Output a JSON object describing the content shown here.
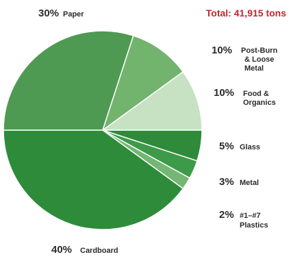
{
  "chart_data": {
    "type": "pie",
    "total_label": "Total: 41,915 tons",
    "slices": [
      {
        "percent_label": "30%",
        "name": "Paper",
        "value": 30,
        "color": "#4f9a52"
      },
      {
        "percent_label": "10%",
        "name": "Post-Burn & Loose Metal",
        "value": 10,
        "color": "#72b36e"
      },
      {
        "percent_label": "10%",
        "name": "Food & Organics",
        "value": 10,
        "color": "#c6e2c2"
      },
      {
        "percent_label": "5%",
        "name": "Glass",
        "value": 5,
        "color": "#2f8a3a"
      },
      {
        "percent_label": "3%",
        "name": "Metal",
        "value": 3,
        "color": "#3d9a48"
      },
      {
        "percent_label": "2%",
        "name": "#1–#7 Plastics",
        "value": 2,
        "color": "#74b674"
      },
      {
        "percent_label": "40%",
        "name": "Cardboard",
        "value": 40,
        "color": "#2e8b3a"
      }
    ]
  }
}
